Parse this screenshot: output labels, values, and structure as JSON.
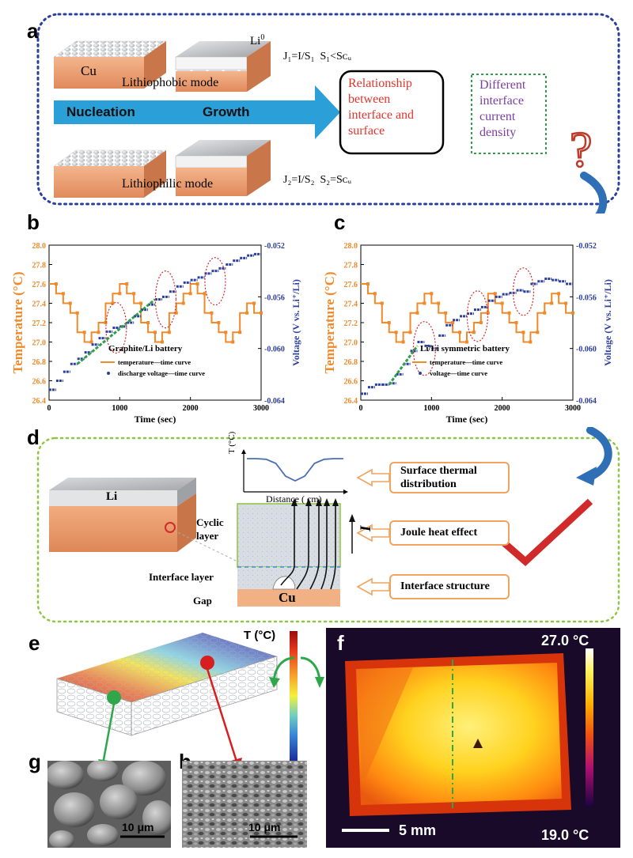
{
  "panels": {
    "a": "a",
    "b": "b",
    "c": "c",
    "d": "d",
    "e": "e",
    "f": "f",
    "g": "g",
    "h": "h"
  },
  "panel_a": {
    "cu_label": "Cu",
    "li0_label": "Li",
    "li0_sup": "0",
    "lithiophobic": "Lithiophobic mode",
    "lithiophilic": "Lithiophilic mode",
    "nucleation": "Nucleation",
    "growth": "Growth",
    "eq1_j": "J₁=I/S₁",
    "eq1_s": "S₁<Sᴄᵤ",
    "eq2_j": "J₂=I/S₂",
    "eq2_s": "S₂=Sᴄᵤ",
    "relationship": [
      "Relationship",
      "between",
      "interface and",
      "surface"
    ],
    "different": [
      "Different",
      "interface",
      "current",
      "density"
    ],
    "question": "?"
  },
  "chart_data": [
    {
      "type": "line",
      "panel": "b",
      "xlabel": "Time (sec)",
      "ylabel": "Temperature (°C)",
      "y2label": "Voltage (V vs. Li⁺/Li)",
      "xlim": [
        0,
        3000
      ],
      "ylim": [
        26.4,
        28.0
      ],
      "y2lim": [
        -0.064,
        -0.052
      ],
      "x_ticks": [
        "0",
        "1000",
        "2000",
        "3000"
      ],
      "y_ticks": [
        "26.4",
        "26.6",
        "26.8",
        "27.0",
        "27.2",
        "27.4",
        "27.6",
        "27.8",
        "28.0"
      ],
      "y2_ticks": [
        "-0.064",
        "-0.060",
        "-0.056",
        "-0.052"
      ],
      "annotation": "Graphite/Li battery",
      "series": [
        {
          "name": "temperature—time curve",
          "axis": "left",
          "x": [
            0,
            100,
            100,
            200,
            200,
            300,
            300,
            400,
            400,
            500,
            500,
            600,
            600,
            700,
            700,
            800,
            800,
            900,
            900,
            1000,
            1000,
            1100,
            1100,
            1200,
            1200,
            1300,
            1300,
            1400,
            1400,
            1500,
            1500,
            1600,
            1600,
            1700,
            1700,
            1800,
            1800,
            1900,
            1900,
            2000,
            2000,
            2100,
            2100,
            2200,
            2200,
            2300,
            2300,
            2400,
            2400,
            2500,
            2500,
            2600,
            2600,
            2700,
            2700,
            2800,
            2800,
            2900,
            2900,
            3000
          ],
          "y": [
            27.6,
            27.6,
            27.5,
            27.5,
            27.4,
            27.4,
            27.3,
            27.3,
            27.1,
            27.1,
            27.0,
            27.0,
            27.1,
            27.1,
            27.2,
            27.2,
            27.4,
            27.4,
            27.5,
            27.5,
            27.6,
            27.6,
            27.5,
            27.5,
            27.4,
            27.4,
            27.2,
            27.2,
            27.1,
            27.1,
            27.0,
            27.0,
            27.1,
            27.1,
            27.3,
            27.3,
            27.4,
            27.4,
            27.5,
            27.5,
            27.6,
            27.6,
            27.5,
            27.5,
            27.3,
            27.3,
            27.2,
            27.2,
            27.1,
            27.1,
            27.0,
            27.0,
            27.1,
            27.1,
            27.3,
            27.3,
            27.4,
            27.4,
            27.3,
            27.3
          ]
        },
        {
          "name": "discharge voltage—time curve",
          "axis": "right",
          "x": [
            0,
            100,
            200,
            300,
            400,
            500,
            600,
            700,
            800,
            900,
            1000,
            1100,
            1200,
            1300,
            1400,
            1500,
            1600,
            1700,
            1800,
            1900,
            2000,
            2100,
            2200,
            2300,
            2400,
            2500,
            2600,
            2700,
            2800,
            2900,
            3000
          ],
          "y": [
            -0.0632,
            -0.0625,
            -0.0618,
            -0.0612,
            -0.0608,
            -0.0603,
            -0.0597,
            -0.0592,
            -0.0587,
            -0.0584,
            -0.0583,
            -0.058,
            -0.0575,
            -0.057,
            -0.0566,
            -0.0562,
            -0.056,
            -0.0556,
            -0.0552,
            -0.0549,
            -0.0547,
            -0.0545,
            -0.0542,
            -0.054,
            -0.0538,
            -0.0535,
            -0.0532,
            -0.053,
            -0.0528,
            -0.0527,
            -0.0527
          ]
        }
      ]
    },
    {
      "type": "line",
      "panel": "c",
      "xlabel": "Time (sec)",
      "ylabel": "Temperature (°C)",
      "y2label": "Voltage (V vs. Li⁺/Li)",
      "xlim": [
        0,
        3000
      ],
      "ylim": [
        26.4,
        28.0
      ],
      "y2lim": [
        -0.064,
        -0.052
      ],
      "x_ticks": [
        "0",
        "1000",
        "2000",
        "3000"
      ],
      "y_ticks": [
        "26.4",
        "26.6",
        "26.8",
        "27.0",
        "27.2",
        "27.4",
        "27.6",
        "27.8",
        "28.0"
      ],
      "y2_ticks": [
        "-0.064",
        "-0.060",
        "-0.056",
        "-0.052"
      ],
      "annotation": "Li/Li symmetric battery",
      "series": [
        {
          "name": "temperature—time curve",
          "axis": "left",
          "x": [
            0,
            100,
            100,
            200,
            200,
            300,
            300,
            400,
            400,
            500,
            500,
            600,
            600,
            700,
            700,
            800,
            800,
            900,
            900,
            1000,
            1000,
            1100,
            1100,
            1200,
            1200,
            1300,
            1300,
            1400,
            1400,
            1500,
            1500,
            1600,
            1600,
            1700,
            1700,
            1800,
            1800,
            1900,
            1900,
            2000,
            2000,
            2100,
            2100,
            2200,
            2200,
            2300,
            2300,
            2400,
            2400,
            2500,
            2500,
            2600,
            2600,
            2700,
            2700,
            2800,
            2800,
            2900,
            2900,
            3000
          ],
          "y": [
            27.6,
            27.6,
            27.5,
            27.5,
            27.4,
            27.4,
            27.2,
            27.2,
            27.1,
            27.1,
            27.0,
            27.0,
            27.1,
            27.1,
            27.3,
            27.3,
            27.4,
            27.4,
            27.5,
            27.5,
            27.4,
            27.4,
            27.3,
            27.3,
            27.2,
            27.2,
            27.1,
            27.1,
            27.0,
            27.0,
            27.1,
            27.1,
            27.2,
            27.2,
            27.3,
            27.3,
            27.5,
            27.5,
            27.4,
            27.4,
            27.3,
            27.3,
            27.2,
            27.2,
            27.1,
            27.1,
            27.0,
            27.0,
            27.1,
            27.1,
            27.3,
            27.3,
            27.4,
            27.4,
            27.5,
            27.5,
            27.4,
            27.4,
            27.3,
            27.3
          ]
        },
        {
          "name": "voltage—time curve",
          "axis": "right",
          "x": [
            0,
            100,
            200,
            300,
            400,
            500,
            600,
            700,
            800,
            900,
            1000,
            1100,
            1200,
            1300,
            1400,
            1500,
            1600,
            1700,
            1800,
            1900,
            2000,
            2100,
            2200,
            2300,
            2400,
            2500,
            2600,
            2700,
            2800,
            2900,
            3000
          ],
          "y": [
            -0.0635,
            -0.063,
            -0.0628,
            -0.0628,
            -0.0627,
            -0.062,
            -0.0612,
            -0.0602,
            -0.0595,
            -0.0598,
            -0.06,
            -0.059,
            -0.0582,
            -0.0578,
            -0.0575,
            -0.0573,
            -0.057,
            -0.0568,
            -0.0563,
            -0.056,
            -0.0558,
            -0.0557,
            -0.0555,
            -0.0556,
            -0.055,
            -0.0548,
            -0.0546,
            -0.0547,
            -0.0548,
            -0.055,
            -0.0551
          ]
        }
      ]
    },
    {
      "type": "line",
      "panel": "d",
      "xlabel": "Distance ( cm)",
      "ylabel": "T (°C)",
      "series": [
        {
          "name": "",
          "x": [
            0,
            1,
            2,
            3,
            4,
            5,
            6,
            7,
            8,
            9,
            10
          ],
          "y": [
            1.0,
            1.0,
            0.98,
            0.85,
            0.45,
            0.3,
            0.45,
            0.85,
            0.98,
            1.0,
            1.0
          ]
        }
      ]
    }
  ],
  "panel_d": {
    "li_label": "Li",
    "cyclic_layer": [
      "Cyclic",
      "layer"
    ],
    "interface_layer": "Interface layer",
    "gap": "Gap",
    "cu_label": "Cu",
    "i_label": "I",
    "box_surface": [
      "Surface thermal",
      "distribution"
    ],
    "box_joule": "Joule heat effect",
    "box_interface": "Interface structure"
  },
  "panel_e": {
    "t_label": "T (°C)"
  },
  "panel_f": {
    "max_temp": "27.0 °C",
    "min_temp": "19.0 °C",
    "scale": "5 mm"
  },
  "panel_g": {
    "scale": "10 μm"
  },
  "panel_h": {
    "scale": "10 μm"
  },
  "colors": {
    "temperature": "#f0892a",
    "voltage": "#2c3e9c",
    "green_fit": "#2e9e4a",
    "panel_a_border": "#2a3f9e",
    "panel_d_border": "#8dc63f",
    "box_border": "#f0a35e",
    "arrow_blue": "#2a9fd8"
  }
}
